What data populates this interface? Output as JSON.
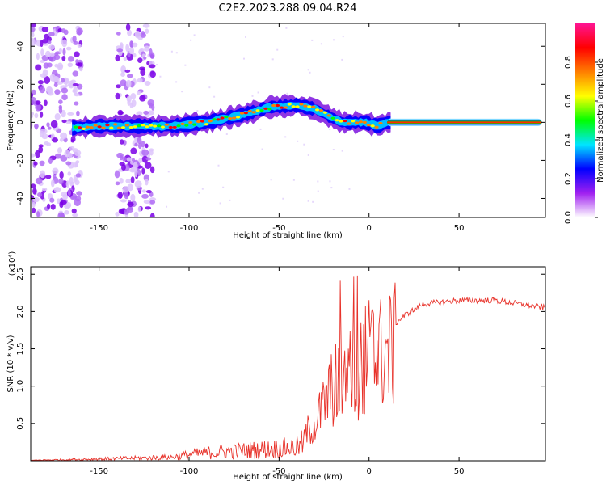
{
  "title": "C2E2.2023.288.09.04.R24",
  "chart_data": [
    {
      "type": "heatmap",
      "name": "spectrogram",
      "xlabel": "Height of straight line (km)",
      "ylabel": "Frequency (Hz)",
      "xlim": [
        -188,
        98
      ],
      "ylim": [
        -50,
        52
      ],
      "xticks": [
        -150,
        -100,
        -50,
        0,
        50
      ],
      "yticks": [
        -40,
        -20,
        0,
        20,
        40
      ],
      "colorbar": {
        "label": "Normalized spectral amplitude",
        "range": [
          0,
          1
        ],
        "ticks": [
          "0.0",
          "0.2",
          "0.4",
          "0.6",
          "0.8"
        ],
        "colors": [
          "#ffffff",
          "#a020f0",
          "#0000ff",
          "#00e5ff",
          "#00ff00",
          "#ffff00",
          "#ff7f00",
          "#ff0000",
          "#ff1493"
        ]
      },
      "ridge": {
        "x": [
          -165,
          -150,
          -130,
          -110,
          -90,
          -70,
          -55,
          -40,
          -30,
          -22,
          -15,
          -8,
          -2,
          5,
          10,
          98
        ],
        "y": [
          -3,
          -2,
          -2,
          -2,
          0,
          4,
          8,
          9,
          7,
          3,
          0,
          0,
          0,
          -2,
          0,
          0
        ]
      },
      "noise_bands": [
        [
          -188,
          -160
        ],
        [
          -140,
          -120
        ]
      ]
    },
    {
      "type": "line",
      "name": "snr",
      "xlabel": "Height of straight line (km)",
      "ylabel": "SNR (10 * v/v)",
      "scale_label": "(x10⁴)",
      "xlim": [
        -188,
        98
      ],
      "ylim": [
        0,
        2.6
      ],
      "xticks": [
        -150,
        -100,
        -50,
        0,
        50
      ],
      "yticks": [
        0.5,
        1.0,
        1.5,
        2.0,
        2.5
      ],
      "color": "#e8322a",
      "envelope": {
        "x": [
          -188,
          -150,
          -110,
          -90,
          -60,
          -40,
          -30,
          -20,
          -10,
          0,
          10,
          20,
          30,
          50,
          70,
          98
        ],
        "y": [
          0.01,
          0.04,
          0.08,
          0.18,
          0.25,
          0.3,
          0.6,
          1.2,
          1.4,
          1.7,
          1.75,
          1.95,
          2.1,
          2.15,
          2.15,
          2.05
        ]
      }
    }
  ]
}
